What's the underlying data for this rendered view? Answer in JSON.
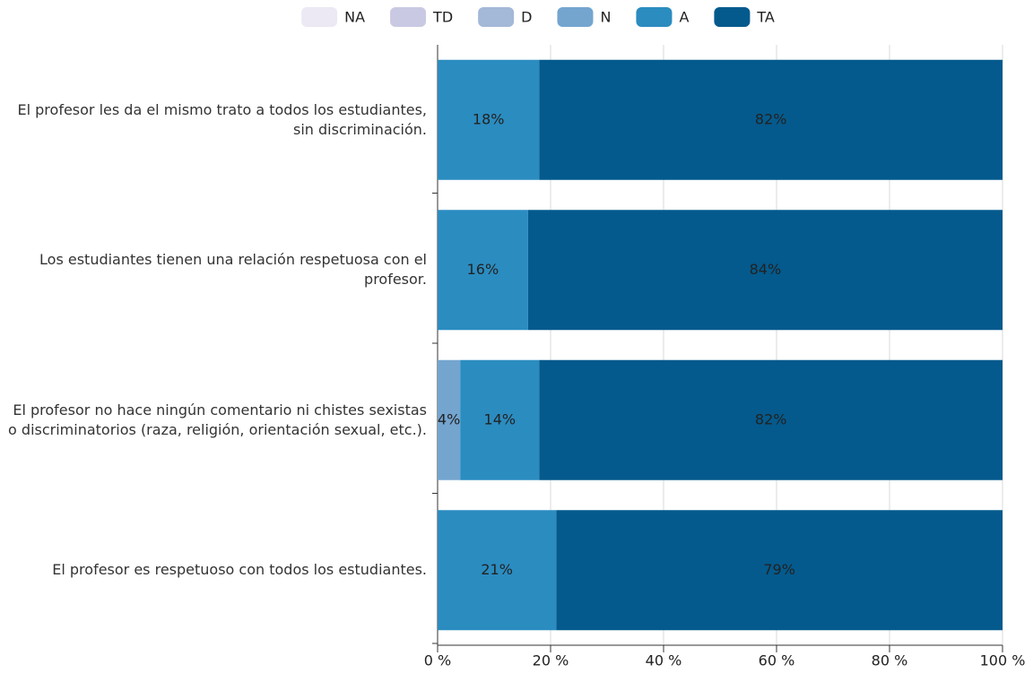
{
  "chart_data": {
    "type": "bar",
    "orientation": "horizontal",
    "stacked": true,
    "categories": [
      "El profesor les da el mismo trato a todos los estudiantes, sin discriminación.",
      "Los estudiantes tienen una relación respetuosa con el profesor.",
      "El profesor no hace ningún comentario ni chistes sexistas o discriminatorios (raza, religión, orientación sexual, etc.).",
      "El profesor es respetuoso con todos los estudiantes."
    ],
    "series": [
      {
        "name": "NA",
        "color": "#ece8f4",
        "values": [
          0,
          0,
          0,
          0
        ],
        "value_labels": [
          null,
          null,
          null,
          null
        ]
      },
      {
        "name": "TD",
        "color": "#c9c9e3",
        "values": [
          0,
          0,
          0,
          0
        ],
        "value_labels": [
          null,
          null,
          null,
          null
        ]
      },
      {
        "name": "D",
        "color": "#a4b8d8",
        "values": [
          0,
          0,
          0,
          0
        ],
        "value_labels": [
          null,
          null,
          null,
          null
        ]
      },
      {
        "name": "N",
        "color": "#74a5cf",
        "values": [
          0,
          0,
          4,
          0
        ],
        "value_labels": [
          null,
          null,
          "4%",
          null
        ]
      },
      {
        "name": "A",
        "color": "#2b8cc0",
        "values": [
          18,
          16,
          14,
          21
        ],
        "value_labels": [
          "18%",
          "16%",
          "14%",
          "21%"
        ]
      },
      {
        "name": "TA",
        "color": "#045a8d",
        "values": [
          82,
          84,
          82,
          79
        ],
        "value_labels": [
          "82%",
          "84%",
          "82%",
          "79%"
        ]
      }
    ],
    "xlim": [
      0,
      100
    ],
    "xticks": [
      {
        "value": 0,
        "label": "0 %"
      },
      {
        "value": 20,
        "label": "20 %"
      },
      {
        "value": 40,
        "label": "40 %"
      },
      {
        "value": 60,
        "label": "60 %"
      },
      {
        "value": 80,
        "label": "80 %"
      },
      {
        "value": 100,
        "label": "100 %"
      }
    ],
    "grid": true,
    "legend": "top"
  }
}
